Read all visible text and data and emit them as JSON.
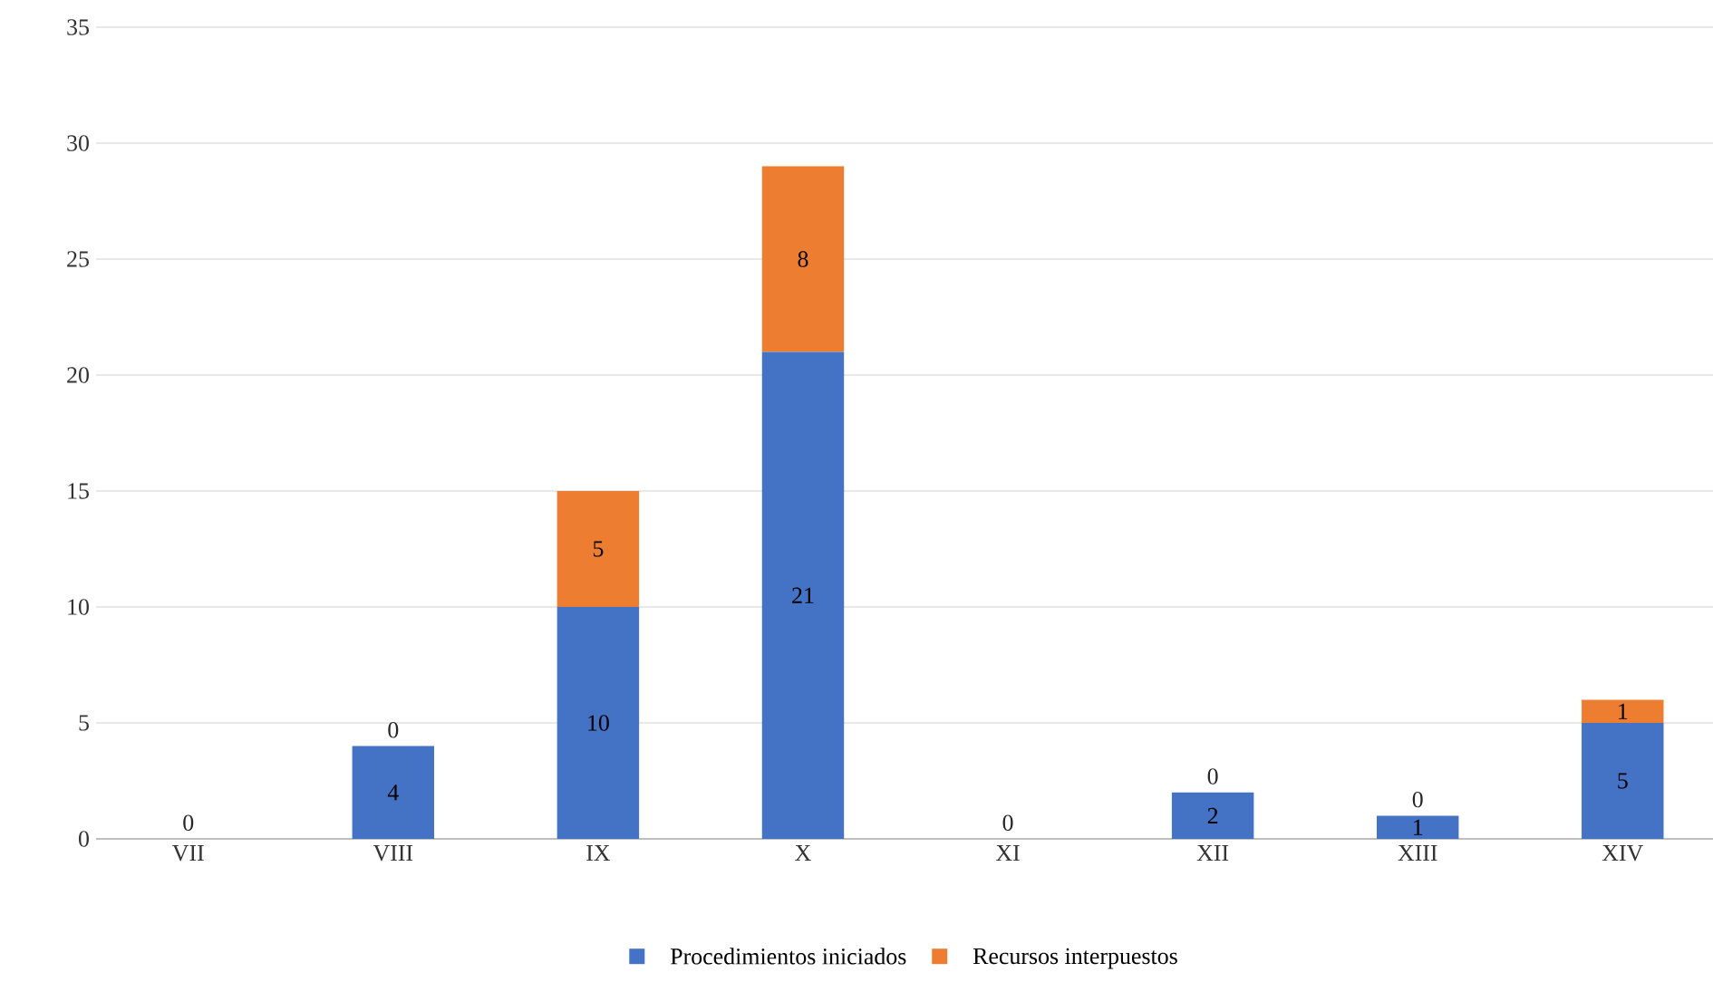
{
  "chart_data": {
    "type": "bar",
    "stacked": true,
    "categories": [
      "VII",
      "VIII",
      "IX",
      "X",
      "XI",
      "XII",
      "XIII",
      "XIV"
    ],
    "series": [
      {
        "name": "Procedimientos iniciados",
        "color": "#4472c4",
        "values": [
          0,
          4,
          10,
          21,
          0,
          2,
          1,
          5
        ],
        "value_labels": [
          "0",
          "4",
          "10",
          "21",
          "0",
          "2",
          "1",
          "5"
        ]
      },
      {
        "name": "Recursos interpuestos",
        "color": "#ed7d31",
        "values": [
          0,
          0,
          5,
          8,
          0,
          0,
          0,
          1
        ],
        "value_labels": [
          null,
          "0",
          "5",
          "8",
          null,
          "0",
          "0",
          "1"
        ]
      }
    ],
    "ylim": [
      0,
      35
    ],
    "yticks": [
      0,
      5,
      10,
      15,
      20,
      25,
      30,
      35
    ],
    "grid": "y",
    "legend": "bottom"
  }
}
